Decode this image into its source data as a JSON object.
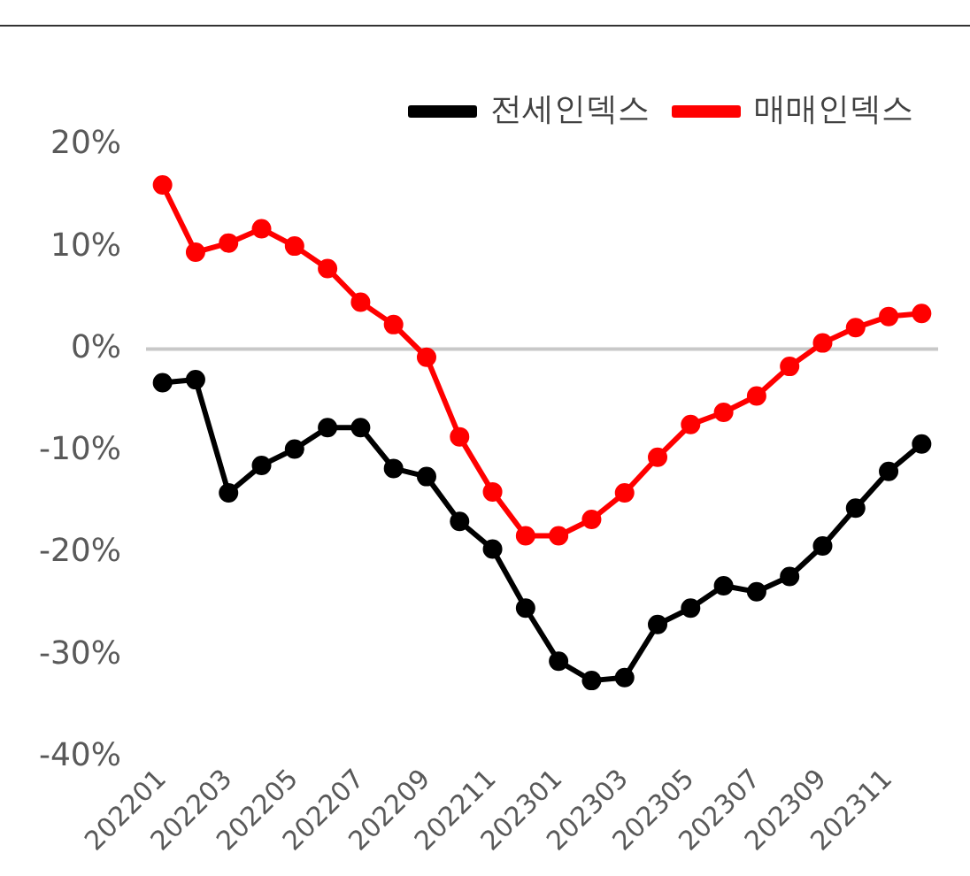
{
  "chart_data": {
    "type": "line",
    "categories": [
      "202201",
      null,
      "202203",
      null,
      "202205",
      null,
      "202207",
      null,
      "202209",
      null,
      "202211",
      null,
      "202301",
      null,
      "202303",
      null,
      "202305",
      null,
      "202307",
      null,
      "202309",
      null,
      "202311",
      null
    ],
    "series": [
      {
        "name": "전세인덱스",
        "color": "#000000",
        "values": [
          -3.3,
          -3.0,
          -14.1,
          -11.4,
          -9.8,
          -7.7,
          -7.7,
          -11.7,
          -12.5,
          -16.9,
          -19.6,
          -25.4,
          -30.6,
          -32.5,
          -32.2,
          -27.0,
          -25.4,
          -23.2,
          -23.8,
          -22.3,
          -19.3,
          -15.6,
          -12.0,
          -9.3
        ]
      },
      {
        "name": "매매인덱스",
        "color": "#ff0000",
        "values": [
          16.1,
          9.5,
          10.4,
          11.8,
          10.1,
          7.9,
          4.6,
          2.4,
          -0.8,
          -8.6,
          -14,
          -18.3,
          -18.3,
          -16.7,
          -14.1,
          -10.6,
          -7.4,
          -6.2,
          -4.6,
          -1.7,
          0.6,
          2.1,
          3.2,
          3.5
        ]
      }
    ],
    "ylim": [
      -40,
      20
    ],
    "yticks": [
      {
        "value": -40,
        "label": "-40%"
      },
      {
        "value": -30,
        "label": "-30%"
      },
      {
        "value": -20,
        "label": "-20%"
      },
      {
        "value": -10,
        "label": "-10%"
      },
      {
        "value": 0,
        "label": "0%"
      },
      {
        "value": 10,
        "label": "10%"
      },
      {
        "value": 20,
        "label": "20%"
      }
    ],
    "ref_lines": [
      {
        "axis": "y",
        "value": 0,
        "color": "#c8c8c8"
      }
    ],
    "grid": false,
    "legend": "top",
    "marker": "circle",
    "line_style": "solid"
  }
}
